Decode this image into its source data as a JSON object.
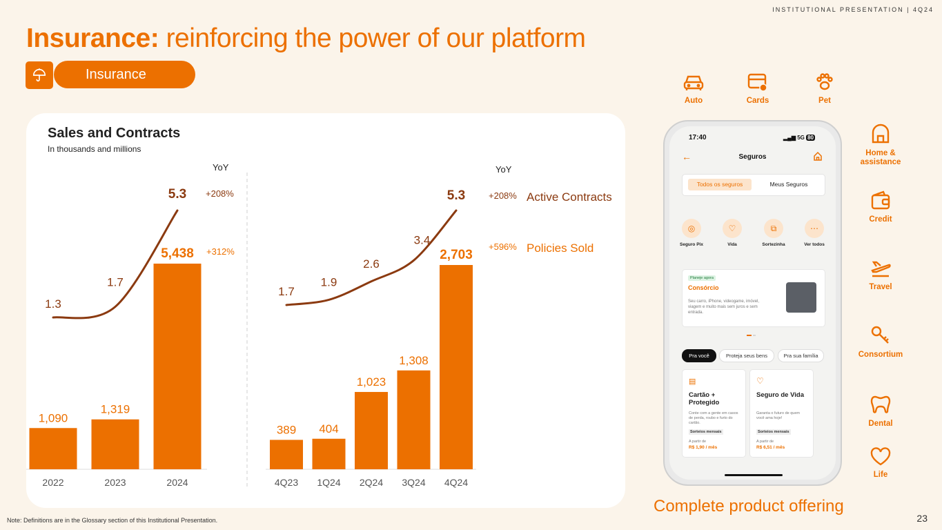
{
  "header": {
    "tag": "INSTITUTIONAL PRESENTATION | 4Q24"
  },
  "title": {
    "bold": "Insurance:",
    "rest": " reinforcing the power of our platform"
  },
  "badge": {
    "label": "Insurance",
    "icon": "umbrella-icon"
  },
  "card": {
    "title": "Sales and Contracts",
    "subtitle": "In thousands and  millions"
  },
  "legend": {
    "yoy_label": "YoY",
    "active_contracts": "Active Contracts",
    "policies_sold": "Policies Sold",
    "annual_contracts_yoy": "+208%",
    "annual_policies_yoy": "+312%",
    "quarterly_contracts_yoy": "+208%",
    "quarterly_policies_yoy": "+596%"
  },
  "chart_data": [
    {
      "type": "bar",
      "categories": [
        "2022",
        "2023",
        "2024"
      ],
      "series": [
        {
          "name": "Policies Sold",
          "type": "bar",
          "values": [
            1090,
            1319,
            5438
          ],
          "labels": [
            "1,090",
            "1,319",
            "5,438"
          ]
        },
        {
          "name": "Active Contracts",
          "type": "line",
          "values": [
            1.3,
            1.7,
            5.3
          ],
          "labels": [
            "1.3",
            "1.7",
            "5.3"
          ]
        }
      ],
      "colors": {
        "bar": "#EC7000",
        "line": "#8B3A10"
      }
    },
    {
      "type": "bar",
      "categories": [
        "4Q23",
        "1Q24",
        "2Q24",
        "3Q24",
        "4Q24"
      ],
      "series": [
        {
          "name": "Policies Sold",
          "type": "bar",
          "values": [
            389,
            404,
            1023,
            1308,
            2703
          ],
          "labels": [
            "389",
            "404",
            "1,023",
            "1,308",
            "2,703"
          ]
        },
        {
          "name": "Active Contracts",
          "type": "line",
          "values": [
            1.7,
            1.9,
            2.6,
            3.4,
            5.3
          ],
          "labels": [
            "1.7",
            "1.9",
            "2.6",
            "3.4",
            "5.3"
          ]
        }
      ],
      "colors": {
        "bar": "#EC7000",
        "line": "#8B3A10"
      }
    }
  ],
  "products": [
    {
      "label": "Auto",
      "icon": "car-icon"
    },
    {
      "label": "Cards",
      "icon": "card-icon"
    },
    {
      "label": "Pet",
      "icon": "paw-icon"
    },
    {
      "label": "Home & assistance",
      "icon": "house-icon"
    },
    {
      "label": "Credit",
      "icon": "wallet-icon"
    },
    {
      "label": "Travel",
      "icon": "airplane-icon"
    },
    {
      "label": "Consortium",
      "icon": "key-icon"
    },
    {
      "label": "Dental",
      "icon": "tooth-icon"
    },
    {
      "label": "Life",
      "icon": "heart-icon"
    }
  ],
  "offer": "Complete product offering",
  "phone": {
    "time": "17:40",
    "status": "5G",
    "battery": "80",
    "screen_title": "Seguros",
    "tabs": [
      "Todos os seguros",
      "Meus Seguros"
    ],
    "shortcuts": [
      "Seguro Pix",
      "Vida",
      "Sortezinha",
      "Ver todos"
    ],
    "promo": {
      "tag": "Planeje agora",
      "title": "Consórcio",
      "text": "Seu carro, iPhone, videogame, imóvel, viagem e muito mais sem juros e sem entrada."
    },
    "chips": [
      "Pra você",
      "Proteja seus bens",
      "Pra sua família"
    ],
    "cards": [
      {
        "title": "Cartão + Protegido",
        "text": "Conte com a gente em casos de perda, roubo e furto do cartão.",
        "tag": "Sorteios mensais",
        "from": "A partir de",
        "price": "R$ 1,90 / mês"
      },
      {
        "title": "Seguro de Vida",
        "text": "Garanta o futuro de quem você ama hoje!",
        "tag": "Sorteios mensais",
        "from": "A partir de",
        "price": "R$ 6,51 / mês"
      }
    ]
  },
  "footnote": "Note: Definitions are in the Glossary section of this Institutional Presentation.",
  "page_number": "23"
}
